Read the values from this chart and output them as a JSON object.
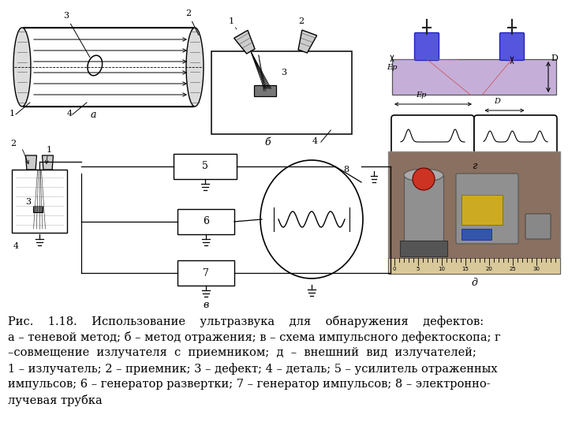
{
  "background_color": "#ffffff",
  "caption_lines": [
    "Рис.    1.18.    Использование    ультразвука    для    обнаружения    дефектов:",
    "а – теневой метод; б – метод отражения; в – схема импульсного дефектоскопа; г",
    "–совмещение  излучателя  с  приемником;  д  –  внешний  вид  излучателей;",
    "1 – излучатель; 2 – приемник; 3 – дефект; 4 – деталь; 5 – усилитель отраженных",
    "импульсов; 6 – генератор развертки; 7 – генератор импульсов; 8 – электронно-",
    "лучевая трубка"
  ],
  "caption_fontsize": 10.5,
  "fig_width": 7.2,
  "fig_height": 5.4,
  "dpi": 100
}
